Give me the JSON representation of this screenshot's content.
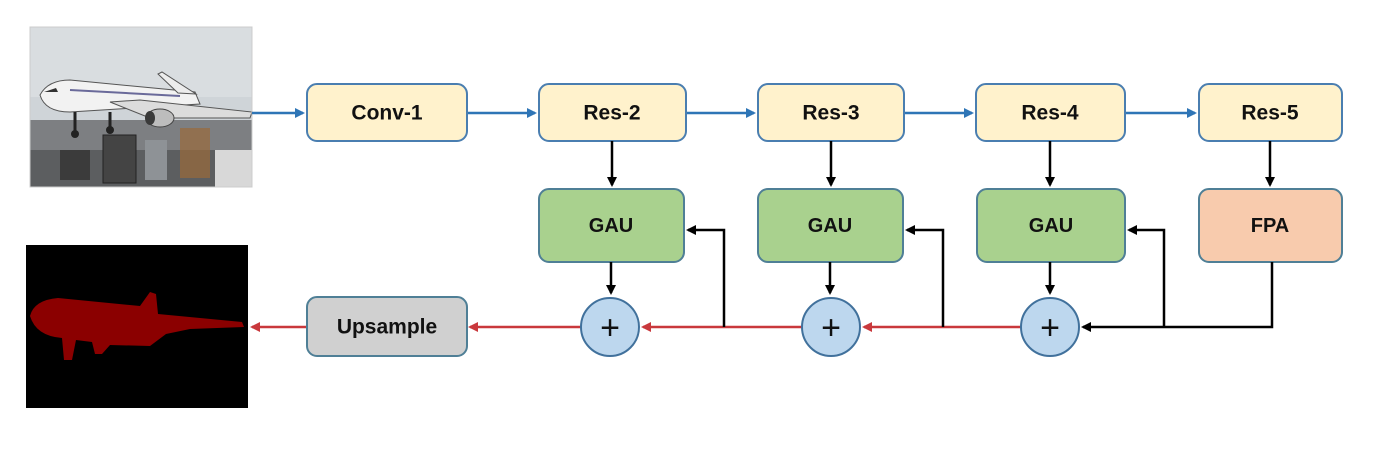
{
  "diagram": {
    "stages": [
      "Conv-1",
      "Res-2",
      "Res-3",
      "Res-4",
      "Res-5"
    ],
    "gau_label": "GAU",
    "fpa_label": "FPA",
    "sum_symbol": "+",
    "upsample_label": "Upsample",
    "input_image": "airplane-photo",
    "output_image": "segmentation-mask",
    "colors": {
      "backbone_fill": "#fff2cc",
      "backbone_stroke": "#4a7eb0",
      "gau_fill": "#a9d18e",
      "gau_stroke": "#4f7f96",
      "fpa_fill": "#f8cbad",
      "fpa_stroke": "#4f7f96",
      "sum_fill": "#bdd7ee",
      "sum_stroke": "#41719c",
      "upsample_fill": "#d0d0d0",
      "upsample_stroke": "#4f7f96",
      "encoder_arrow": "#2e75b6",
      "decoder_arrow": "#c9383c",
      "skip_arrow": "#000000",
      "mask": "#8b0000",
      "mask_bg": "#000000"
    }
  }
}
